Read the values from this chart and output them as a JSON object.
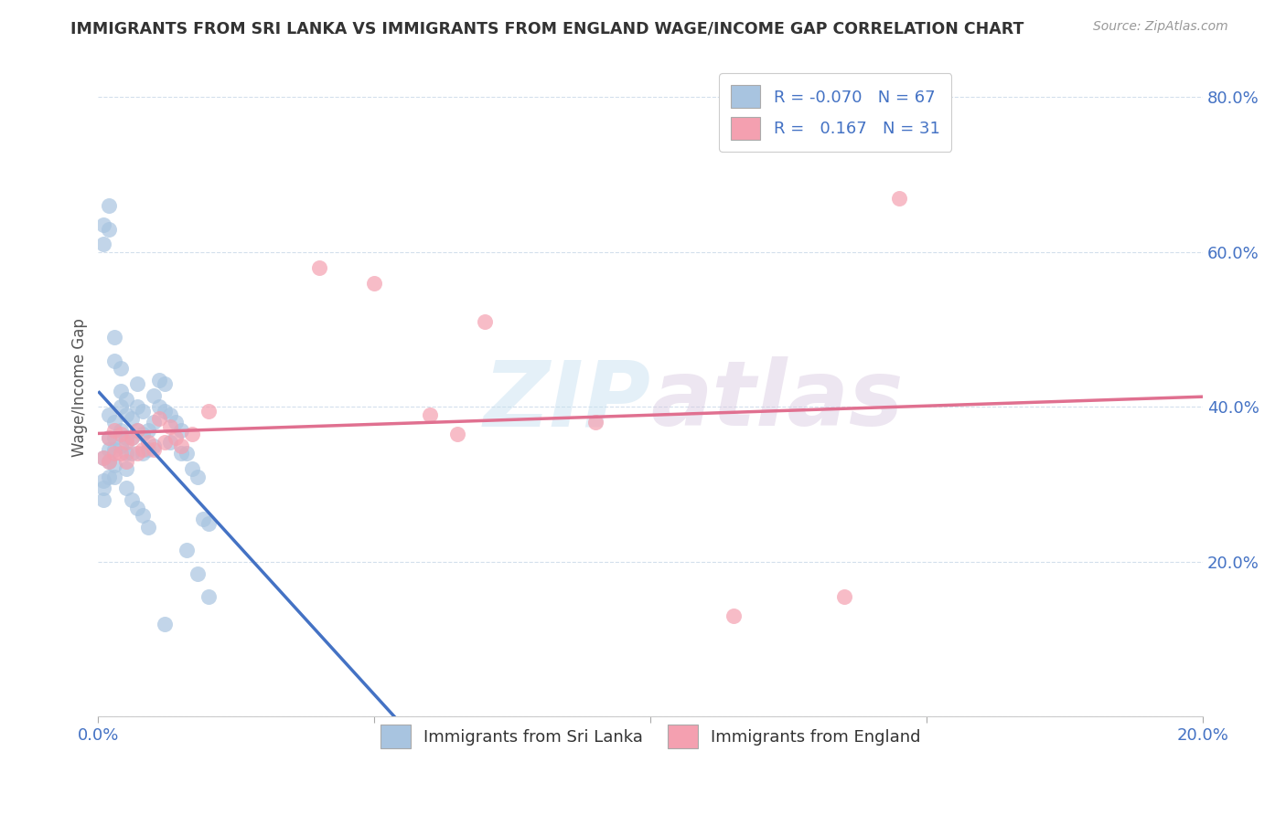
{
  "title": "IMMIGRANTS FROM SRI LANKA VS IMMIGRANTS FROM ENGLAND WAGE/INCOME GAP CORRELATION CHART",
  "source": "Source: ZipAtlas.com",
  "ylabel": "Wage/Income Gap",
  "x_min": 0.0,
  "x_max": 0.2,
  "y_min": 0.0,
  "y_max": 0.85,
  "sri_lanka_color": "#a8c4e0",
  "england_color": "#f4a0b0",
  "sl_line_color": "#4472c4",
  "sl_dash_color": "#a8c4e0",
  "eng_line_color": "#e07090",
  "sri_lanka_R": -0.07,
  "sri_lanka_N": 67,
  "england_R": 0.167,
  "england_N": 31,
  "watermark": "ZIPatlas",
  "sl_x": [
    0.001,
    0.001,
    0.001,
    0.001,
    0.002,
    0.002,
    0.002,
    0.002,
    0.002,
    0.003,
    0.003,
    0.003,
    0.003,
    0.003,
    0.004,
    0.004,
    0.004,
    0.004,
    0.005,
    0.005,
    0.005,
    0.005,
    0.006,
    0.006,
    0.006,
    0.007,
    0.007,
    0.007,
    0.008,
    0.008,
    0.008,
    0.009,
    0.009,
    0.01,
    0.01,
    0.01,
    0.011,
    0.011,
    0.012,
    0.012,
    0.013,
    0.013,
    0.014,
    0.015,
    0.015,
    0.016,
    0.017,
    0.018,
    0.019,
    0.02,
    0.001,
    0.001,
    0.002,
    0.002,
    0.003,
    0.003,
    0.004,
    0.005,
    0.005,
    0.006,
    0.007,
    0.008,
    0.009,
    0.012,
    0.016,
    0.018,
    0.02
  ],
  "sl_y": [
    0.335,
    0.305,
    0.295,
    0.28,
    0.39,
    0.36,
    0.345,
    0.33,
    0.31,
    0.38,
    0.36,
    0.345,
    0.325,
    0.31,
    0.42,
    0.4,
    0.37,
    0.35,
    0.41,
    0.39,
    0.36,
    0.34,
    0.385,
    0.36,
    0.34,
    0.43,
    0.4,
    0.37,
    0.395,
    0.365,
    0.34,
    0.37,
    0.345,
    0.415,
    0.38,
    0.35,
    0.435,
    0.4,
    0.43,
    0.395,
    0.39,
    0.355,
    0.38,
    0.37,
    0.34,
    0.34,
    0.32,
    0.31,
    0.255,
    0.25,
    0.635,
    0.61,
    0.66,
    0.63,
    0.49,
    0.46,
    0.45,
    0.32,
    0.295,
    0.28,
    0.27,
    0.26,
    0.245,
    0.12,
    0.215,
    0.185,
    0.155
  ],
  "eng_x": [
    0.001,
    0.002,
    0.002,
    0.003,
    0.003,
    0.004,
    0.004,
    0.005,
    0.005,
    0.006,
    0.007,
    0.007,
    0.008,
    0.009,
    0.01,
    0.011,
    0.012,
    0.013,
    0.014,
    0.015,
    0.017,
    0.02,
    0.04,
    0.05,
    0.06,
    0.065,
    0.07,
    0.09,
    0.115,
    0.135,
    0.145
  ],
  "eng_y": [
    0.335,
    0.36,
    0.33,
    0.37,
    0.34,
    0.365,
    0.34,
    0.355,
    0.33,
    0.36,
    0.37,
    0.34,
    0.345,
    0.355,
    0.345,
    0.385,
    0.355,
    0.375,
    0.36,
    0.35,
    0.365,
    0.395,
    0.58,
    0.56,
    0.39,
    0.365,
    0.51,
    0.38,
    0.13,
    0.155,
    0.67
  ]
}
